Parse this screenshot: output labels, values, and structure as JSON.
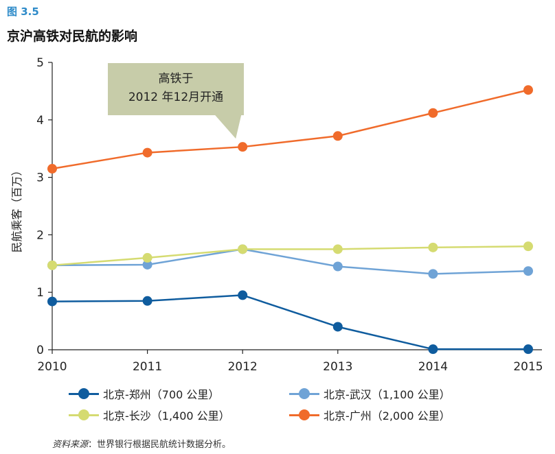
{
  "figure_label": "图 3.5",
  "figure_title": "京沪高铁对民航的影响",
  "source_label": "资料来源",
  "source_text": "：世界银行根据民航统计数据分析。",
  "chart_data": {
    "type": "line",
    "title": "京沪高铁对民航的影响",
    "xlabel": "",
    "ylabel": "民航乘客（百万）",
    "x": [
      2010,
      2011,
      2012,
      2013,
      2014,
      2015
    ],
    "xlim": [
      2010,
      2015
    ],
    "ylim": [
      0,
      5
    ],
    "yticks": [
      0,
      1,
      2,
      3,
      4,
      5
    ],
    "grid": false,
    "legend_position": "bottom",
    "series": [
      {
        "name": "北京-郑州（700 公里）",
        "color": "#0f5c9e",
        "values": [
          0.84,
          0.85,
          0.95,
          0.4,
          0.01,
          0.01
        ]
      },
      {
        "name": "北京-武汉（1,100 公里）",
        "color": "#6fa3d6",
        "values": [
          1.47,
          1.48,
          1.75,
          1.45,
          1.32,
          1.37
        ]
      },
      {
        "name": "北京-长沙（1,400 公里）",
        "color": "#d5db71",
        "values": [
          1.47,
          1.6,
          1.75,
          1.75,
          1.78,
          1.8
        ]
      },
      {
        "name": "北京-广州（2,000 公里）",
        "color": "#f06b2b",
        "values": [
          3.15,
          3.43,
          3.53,
          3.72,
          4.12,
          4.52
        ]
      }
    ],
    "annotation": {
      "lines": [
        "高铁于",
        "2012 年12月开通"
      ],
      "x": 2012,
      "y": 3.53,
      "color": "#c7cca9"
    }
  }
}
